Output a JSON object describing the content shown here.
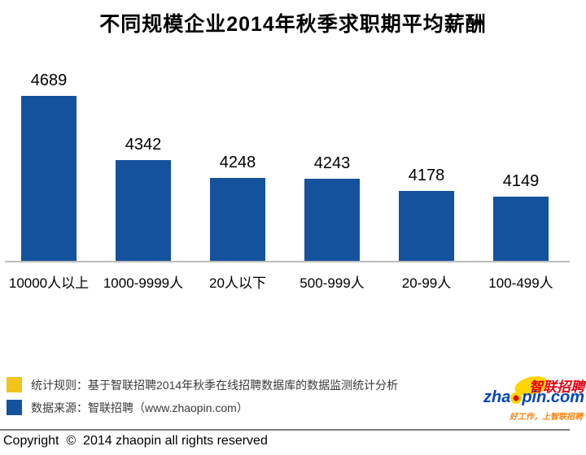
{
  "page": {
    "title": "不同规模企业2014年秋季求职期平均薪酬"
  },
  "chart_data": {
    "type": "bar",
    "title": "不同规模企业2014年秋季求职期平均薪酬",
    "categories": [
      "10000人以上",
      "1000-9999人",
      "20人以下",
      "500-999人",
      "20-99人",
      "100-499人"
    ],
    "values": [
      4689,
      4342,
      4248,
      4243,
      4178,
      4149
    ],
    "xlabel": "",
    "ylabel": "",
    "ylim": [
      3800,
      4700
    ],
    "grid": false,
    "legend_position": "none",
    "bar_color": "#15529E",
    "value_label_color": "#000000"
  },
  "legend": {
    "rows": [
      {
        "swatch_color": "#F2C31B",
        "text": "统计规则：基于智联招聘2014年秋季在线招聘数据库的数据监测统计分析"
      },
      {
        "swatch_color": "#15529E",
        "text": "数据来源：智联招聘（www.zhaopin.com）"
      }
    ]
  },
  "logo": {
    "brand_cn": "智联招聘",
    "domain_left": "zha",
    "domain_right": "pin.com",
    "slogan": "好工作，上智联招聘",
    "colors": {
      "cn_red": "#E60012",
      "domain_blue": "#0046B8",
      "accent_yellow": "#FFD500",
      "slogan_orange": "#F7820A"
    }
  },
  "footer": {
    "copyright": "Copyright  ©  2014 zhaopin all rights reserved"
  }
}
